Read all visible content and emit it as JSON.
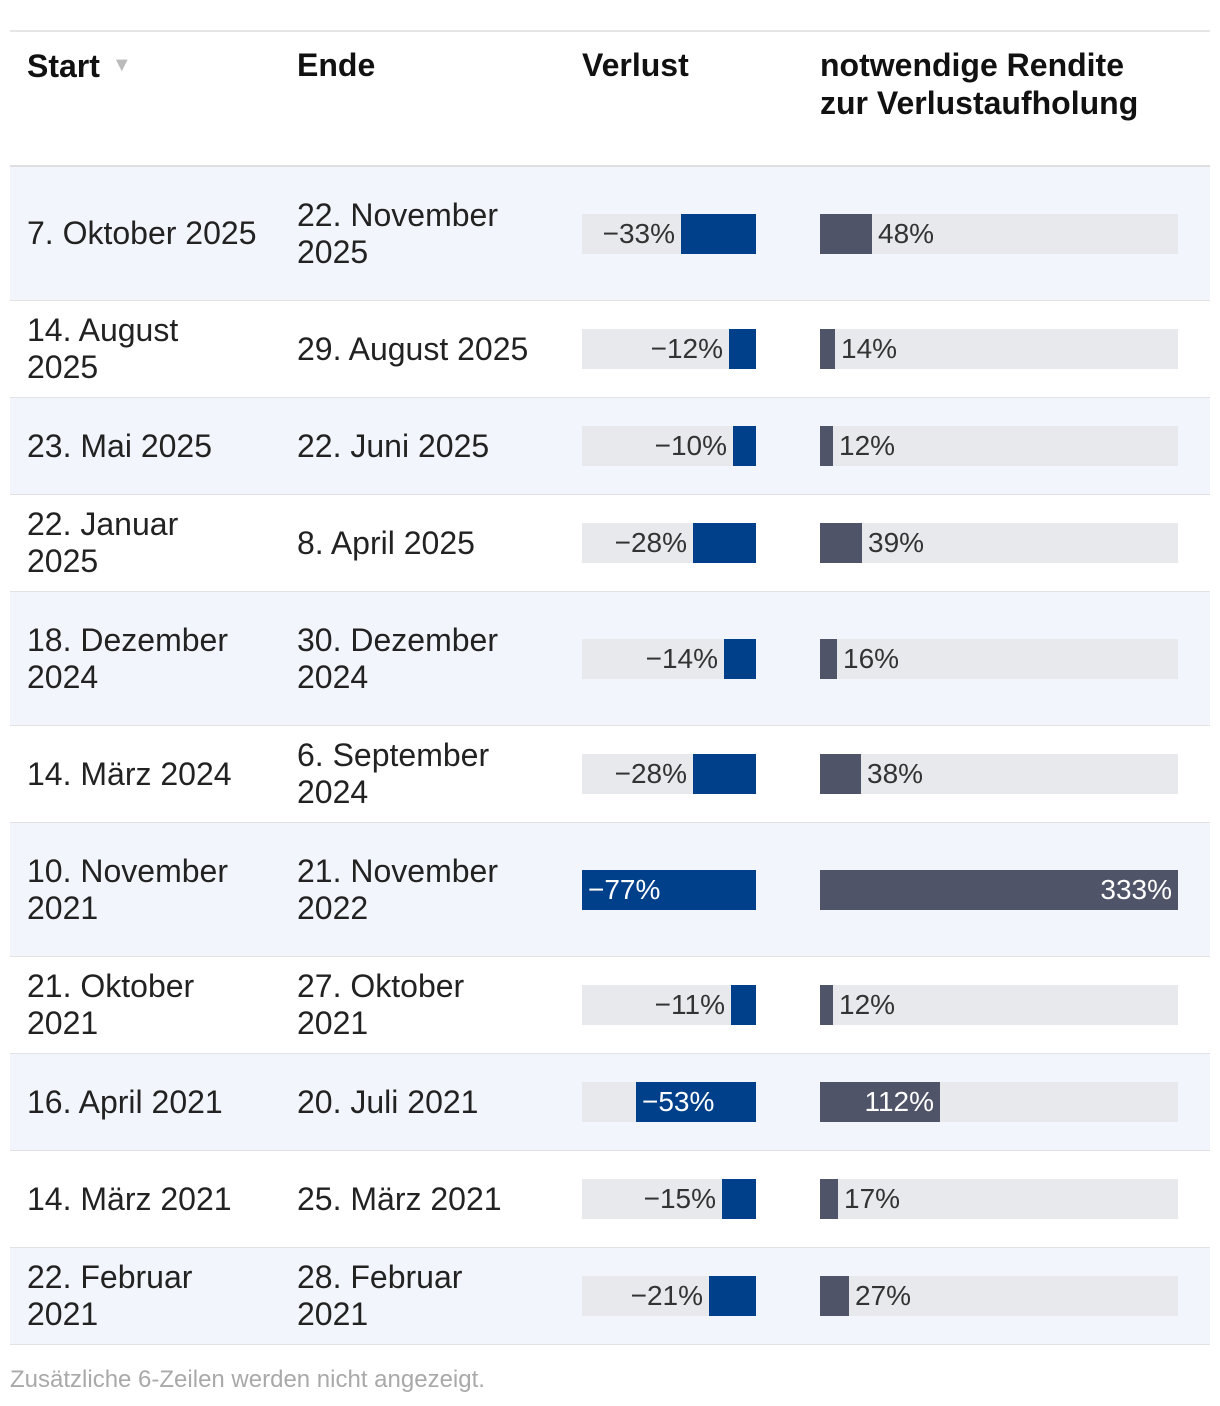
{
  "columns": {
    "start": "Start",
    "end": "Ende",
    "loss": "Verlust",
    "required_line1": "notwendige Rendite",
    "required_line2": "zur Verlustaufholung"
  },
  "colors": {
    "loss_bar": "#003f8a",
    "required_bar": "#4f5468",
    "bar_track": "#e8e9ed",
    "row_alt": "#f2f5fb"
  },
  "chart_data": {
    "type": "table",
    "loss_scale_max": 77,
    "required_scale_max": 333,
    "rows": [
      {
        "start": "7. Oktober 2025",
        "end": "22. November 2025",
        "loss": -33,
        "loss_label": "−33%",
        "required": 48,
        "required_label": "48%"
      },
      {
        "start": "14. August 2025",
        "end": "29. August 2025",
        "loss": -12,
        "loss_label": "−12%",
        "required": 14,
        "required_label": "14%"
      },
      {
        "start": "23. Mai 2025",
        "end": "22. Juni 2025",
        "loss": -10,
        "loss_label": "−10%",
        "required": 12,
        "required_label": "12%"
      },
      {
        "start": "22. Januar 2025",
        "end": "8. April 2025",
        "loss": -28,
        "loss_label": "−28%",
        "required": 39,
        "required_label": "39%"
      },
      {
        "start": "18. Dezember 2024",
        "end": "30. Dezember 2024",
        "loss": -14,
        "loss_label": "−14%",
        "required": 16,
        "required_label": "16%"
      },
      {
        "start": "14. März 2024",
        "end": "6. September 2024",
        "loss": -28,
        "loss_label": "−28%",
        "required": 38,
        "required_label": "38%"
      },
      {
        "start": "10. November 2021",
        "end": "21. November 2022",
        "loss": -77,
        "loss_label": "−77%",
        "required": 333,
        "required_label": "333%"
      },
      {
        "start": "21. Oktober 2021",
        "end": "27. Oktober 2021",
        "loss": -11,
        "loss_label": "−11%",
        "required": 12,
        "required_label": "12%"
      },
      {
        "start": "16. April 2021",
        "end": "20. Juli 2021",
        "loss": -53,
        "loss_label": "−53%",
        "required": 112,
        "required_label": "112%"
      },
      {
        "start": "14. März 2021",
        "end": "25. März 2021",
        "loss": -15,
        "loss_label": "−15%",
        "required": 17,
        "required_label": "17%"
      },
      {
        "start": "22. Februar 2021",
        "end": "28. Februar 2021",
        "loss": -21,
        "loss_label": "−21%",
        "required": 27,
        "required_label": "27%"
      }
    ]
  },
  "footer": "Zusätzliche 6-Zeilen werden nicht angezeigt."
}
